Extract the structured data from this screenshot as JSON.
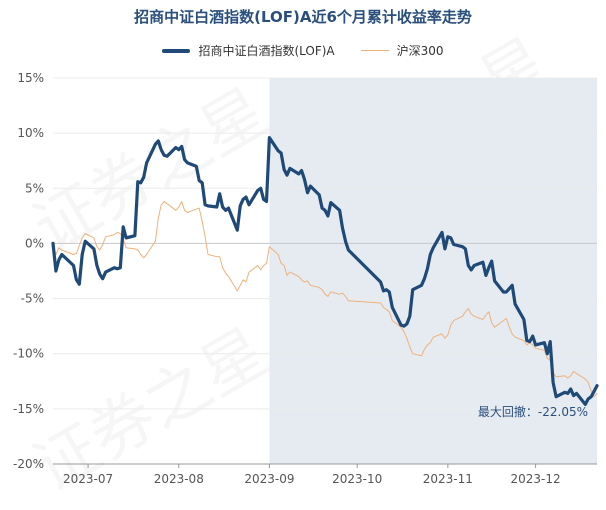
{
  "chart_data": {
    "type": "line",
    "title": "招商中证白酒指数(LOF)A近6个月累计收益率走势",
    "ylim": [
      -20,
      15
    ],
    "y_ticks": [
      "15%",
      "10%",
      "5%",
      "0%",
      "-5%",
      "-10%",
      "-15%",
      "-20%"
    ],
    "x_ticks": [
      "2023-07",
      "2023-08",
      "2023-09",
      "2023-10",
      "2023-11",
      "2023-12"
    ],
    "x_range": [
      "2023-06-19",
      "2023-12-22"
    ],
    "grid": true,
    "legend_position": "top",
    "shaded_region": {
      "start": "2023-09-01",
      "end": "2023-12-22"
    },
    "annotation": "最大回撤：-22.05%",
    "series": [
      {
        "name": "招商中证白酒指数(LOF)A",
        "color": "#1f4a78",
        "points": [
          [
            "2023-06-19",
            0.0
          ],
          [
            "2023-06-20",
            -2.5
          ],
          [
            "2023-06-21",
            -1.5
          ],
          [
            "2023-06-22",
            -1.0
          ],
          [
            "2023-06-26",
            -2.0
          ],
          [
            "2023-06-27",
            -3.3
          ],
          [
            "2023-06-28",
            -3.7
          ],
          [
            "2023-06-29",
            -1.0
          ],
          [
            "2023-06-30",
            0.2
          ],
          [
            "2023-07-03",
            -0.5
          ],
          [
            "2023-07-04",
            -2.0
          ],
          [
            "2023-07-05",
            -2.8
          ],
          [
            "2023-07-06",
            -3.2
          ],
          [
            "2023-07-07",
            -2.6
          ],
          [
            "2023-07-10",
            -2.2
          ],
          [
            "2023-07-11",
            -2.3
          ],
          [
            "2023-07-12",
            -2.2
          ],
          [
            "2023-07-13",
            1.5
          ],
          [
            "2023-07-14",
            0.5
          ],
          [
            "2023-07-17",
            0.7
          ],
          [
            "2023-07-18",
            5.6
          ],
          [
            "2023-07-19",
            5.5
          ],
          [
            "2023-07-20",
            6.0
          ],
          [
            "2023-07-21",
            7.3
          ],
          [
            "2023-07-24",
            9.0
          ],
          [
            "2023-07-25",
            9.3
          ],
          [
            "2023-07-26",
            8.5
          ],
          [
            "2023-07-27",
            8.0
          ],
          [
            "2023-07-28",
            7.9
          ],
          [
            "2023-07-31",
            8.7
          ],
          [
            "2023-08-01",
            8.5
          ],
          [
            "2023-08-02",
            8.8
          ],
          [
            "2023-08-03",
            7.6
          ],
          [
            "2023-08-04",
            7.3
          ],
          [
            "2023-08-07",
            7.0
          ],
          [
            "2023-08-08",
            5.7
          ],
          [
            "2023-08-09",
            5.5
          ],
          [
            "2023-08-10",
            3.5
          ],
          [
            "2023-08-11",
            3.4
          ],
          [
            "2023-08-14",
            3.3
          ],
          [
            "2023-08-15",
            4.5
          ],
          [
            "2023-08-16",
            3.3
          ],
          [
            "2023-08-17",
            3.0
          ],
          [
            "2023-08-18",
            3.2
          ],
          [
            "2023-08-21",
            1.2
          ],
          [
            "2023-08-22",
            3.4
          ],
          [
            "2023-08-23",
            4.0
          ],
          [
            "2023-08-24",
            4.2
          ],
          [
            "2023-08-25",
            3.5
          ],
          [
            "2023-08-28",
            4.8
          ],
          [
            "2023-08-29",
            5.0
          ],
          [
            "2023-08-30",
            4.0
          ],
          [
            "2023-08-31",
            3.8
          ],
          [
            "2023-09-01",
            9.6
          ],
          [
            "2023-09-04",
            8.4
          ],
          [
            "2023-09-05",
            8.2
          ],
          [
            "2023-09-06",
            6.7
          ],
          [
            "2023-09-07",
            6.2
          ],
          [
            "2023-09-08",
            6.8
          ],
          [
            "2023-09-11",
            6.3
          ],
          [
            "2023-09-12",
            6.6
          ],
          [
            "2023-09-13",
            5.8
          ],
          [
            "2023-09-14",
            4.6
          ],
          [
            "2023-09-15",
            5.2
          ],
          [
            "2023-09-18",
            4.4
          ],
          [
            "2023-09-19",
            3.2
          ],
          [
            "2023-09-20",
            3.0
          ],
          [
            "2023-09-21",
            2.5
          ],
          [
            "2023-09-22",
            3.7
          ],
          [
            "2023-09-25",
            3.0
          ],
          [
            "2023-09-26",
            1.4
          ],
          [
            "2023-09-27",
            0.2
          ],
          [
            "2023-09-28",
            -0.6
          ],
          [
            "2023-10-09",
            -3.5
          ],
          [
            "2023-10-10",
            -4.3
          ],
          [
            "2023-10-11",
            -4.2
          ],
          [
            "2023-10-12",
            -4.4
          ],
          [
            "2023-10-13",
            -5.8
          ],
          [
            "2023-10-16",
            -7.4
          ],
          [
            "2023-10-17",
            -7.5
          ],
          [
            "2023-10-18",
            -7.3
          ],
          [
            "2023-10-19",
            -6.6
          ],
          [
            "2023-10-20",
            -4.2
          ],
          [
            "2023-10-23",
            -3.8
          ],
          [
            "2023-10-24",
            -3.2
          ],
          [
            "2023-10-25",
            -2.3
          ],
          [
            "2023-10-26",
            -1.0
          ],
          [
            "2023-10-27",
            -0.4
          ],
          [
            "2023-10-30",
            1.0
          ],
          [
            "2023-10-31",
            -0.5
          ],
          [
            "2023-11-01",
            0.6
          ],
          [
            "2023-11-02",
            0.5
          ],
          [
            "2023-11-03",
            -0.1
          ],
          [
            "2023-11-06",
            -0.3
          ],
          [
            "2023-11-07",
            -0.5
          ],
          [
            "2023-11-08",
            -2.0
          ],
          [
            "2023-11-09",
            -2.4
          ],
          [
            "2023-11-10",
            -2.0
          ],
          [
            "2023-11-13",
            -1.7
          ],
          [
            "2023-11-14",
            -2.9
          ],
          [
            "2023-11-15",
            -2.2
          ],
          [
            "2023-11-16",
            -1.6
          ],
          [
            "2023-11-17",
            -3.4
          ],
          [
            "2023-11-20",
            -4.4
          ],
          [
            "2023-11-21",
            -4.4
          ],
          [
            "2023-11-22",
            -4.1
          ],
          [
            "2023-11-23",
            -3.8
          ],
          [
            "2023-11-24",
            -5.5
          ],
          [
            "2023-11-27",
            -6.9
          ],
          [
            "2023-11-28",
            -8.8
          ],
          [
            "2023-11-29",
            -8.9
          ],
          [
            "2023-11-30",
            -8.4
          ],
          [
            "2023-12-01",
            -9.2
          ],
          [
            "2023-12-04",
            -9.0
          ],
          [
            "2023-12-05",
            -10.0
          ],
          [
            "2023-12-06",
            -8.9
          ],
          [
            "2023-12-07",
            -12.6
          ],
          [
            "2023-12-08",
            -13.9
          ],
          [
            "2023-12-11",
            -13.5
          ],
          [
            "2023-12-12",
            -13.6
          ],
          [
            "2023-12-13",
            -13.2
          ],
          [
            "2023-12-14",
            -13.8
          ],
          [
            "2023-12-15",
            -13.6
          ],
          [
            "2023-12-18",
            -14.6
          ],
          [
            "2023-12-19",
            -14.1
          ],
          [
            "2023-12-20",
            -13.9
          ],
          [
            "2023-12-21",
            -13.4
          ],
          [
            "2023-12-22",
            -12.9
          ]
        ]
      },
      {
        "name": "沪深300",
        "color": "#f0b27a",
        "points": [
          [
            "2023-06-19",
            0.0
          ],
          [
            "2023-06-20",
            -1.0
          ],
          [
            "2023-06-21",
            -0.4
          ],
          [
            "2023-06-22",
            -0.6
          ],
          [
            "2023-06-26",
            -1.0
          ],
          [
            "2023-06-27",
            -0.9
          ],
          [
            "2023-06-28",
            -0.2
          ],
          [
            "2023-06-29",
            0.5
          ],
          [
            "2023-06-30",
            0.9
          ],
          [
            "2023-07-03",
            0.5
          ],
          [
            "2023-07-04",
            -0.3
          ],
          [
            "2023-07-05",
            -0.6
          ],
          [
            "2023-07-06",
            -0.1
          ],
          [
            "2023-07-07",
            0.6
          ],
          [
            "2023-07-10",
            0.8
          ],
          [
            "2023-07-11",
            1.0
          ],
          [
            "2023-07-12",
            0.9
          ],
          [
            "2023-07-13",
            0.4
          ],
          [
            "2023-07-14",
            -0.4
          ],
          [
            "2023-07-17",
            -0.5
          ],
          [
            "2023-07-18",
            -0.6
          ],
          [
            "2023-07-19",
            -1.0
          ],
          [
            "2023-07-20",
            -1.3
          ],
          [
            "2023-07-21",
            -1.0
          ],
          [
            "2023-07-24",
            0.2
          ],
          [
            "2023-07-25",
            2.3
          ],
          [
            "2023-07-26",
            3.5
          ],
          [
            "2023-07-27",
            3.8
          ],
          [
            "2023-07-28",
            3.6
          ],
          [
            "2023-07-31",
            3.0
          ],
          [
            "2023-08-01",
            3.3
          ],
          [
            "2023-08-02",
            3.8
          ],
          [
            "2023-08-03",
            3.0
          ],
          [
            "2023-08-04",
            2.8
          ],
          [
            "2023-08-07",
            3.1
          ],
          [
            "2023-08-08",
            3.2
          ],
          [
            "2023-08-09",
            2.0
          ],
          [
            "2023-08-10",
            0.6
          ],
          [
            "2023-08-11",
            -1.0
          ],
          [
            "2023-08-14",
            -1.2
          ],
          [
            "2023-08-15",
            -1.2
          ],
          [
            "2023-08-16",
            -2.2
          ],
          [
            "2023-08-17",
            -2.7
          ],
          [
            "2023-08-18",
            -3.0
          ],
          [
            "2023-08-21",
            -4.3
          ],
          [
            "2023-08-22",
            -3.8
          ],
          [
            "2023-08-23",
            -3.3
          ],
          [
            "2023-08-24",
            -3.5
          ],
          [
            "2023-08-25",
            -2.6
          ],
          [
            "2023-08-28",
            -2.0
          ],
          [
            "2023-08-29",
            -2.4
          ],
          [
            "2023-08-30",
            -2.0
          ],
          [
            "2023-08-31",
            -1.8
          ],
          [
            "2023-09-01",
            -0.3
          ],
          [
            "2023-09-04",
            -1.0
          ],
          [
            "2023-09-05",
            -1.8
          ],
          [
            "2023-09-06",
            -2.0
          ],
          [
            "2023-09-07",
            -2.9
          ],
          [
            "2023-09-08",
            -2.6
          ],
          [
            "2023-09-11",
            -3.0
          ],
          [
            "2023-09-12",
            -3.3
          ],
          [
            "2023-09-13",
            -3.5
          ],
          [
            "2023-09-14",
            -3.4
          ],
          [
            "2023-09-15",
            -3.8
          ],
          [
            "2023-09-18",
            -4.0
          ],
          [
            "2023-09-19",
            -4.2
          ],
          [
            "2023-09-20",
            -4.6
          ],
          [
            "2023-09-21",
            -4.8
          ],
          [
            "2023-09-22",
            -4.4
          ],
          [
            "2023-09-25",
            -4.6
          ],
          [
            "2023-09-26",
            -4.5
          ],
          [
            "2023-09-27",
            -4.8
          ],
          [
            "2023-09-28",
            -5.2
          ],
          [
            "2023-10-09",
            -5.4
          ],
          [
            "2023-10-10",
            -5.8
          ],
          [
            "2023-10-11",
            -6.0
          ],
          [
            "2023-10-12",
            -6.2
          ],
          [
            "2023-10-13",
            -7.0
          ],
          [
            "2023-10-16",
            -7.6
          ],
          [
            "2023-10-17",
            -8.0
          ],
          [
            "2023-10-18",
            -8.6
          ],
          [
            "2023-10-19",
            -9.4
          ],
          [
            "2023-10-20",
            -10.0
          ],
          [
            "2023-10-23",
            -10.2
          ],
          [
            "2023-10-24",
            -9.6
          ],
          [
            "2023-10-25",
            -9.2
          ],
          [
            "2023-10-26",
            -9.0
          ],
          [
            "2023-10-27",
            -8.5
          ],
          [
            "2023-10-30",
            -8.2
          ],
          [
            "2023-10-31",
            -8.6
          ],
          [
            "2023-11-01",
            -8.3
          ],
          [
            "2023-11-02",
            -7.4
          ],
          [
            "2023-11-03",
            -7.0
          ],
          [
            "2023-11-06",
            -6.6
          ],
          [
            "2023-11-07",
            -6.2
          ],
          [
            "2023-11-08",
            -5.9
          ],
          [
            "2023-11-09",
            -6.4
          ],
          [
            "2023-11-10",
            -6.6
          ],
          [
            "2023-11-13",
            -6.9
          ],
          [
            "2023-11-14",
            -6.5
          ],
          [
            "2023-11-15",
            -6.2
          ],
          [
            "2023-11-16",
            -7.2
          ],
          [
            "2023-11-17",
            -7.6
          ],
          [
            "2023-11-20",
            -7.0
          ],
          [
            "2023-11-21",
            -6.8
          ],
          [
            "2023-11-22",
            -7.6
          ],
          [
            "2023-11-23",
            -8.2
          ],
          [
            "2023-11-24",
            -8.5
          ],
          [
            "2023-11-27",
            -8.8
          ],
          [
            "2023-11-28",
            -9.2
          ],
          [
            "2023-11-29",
            -9.0
          ],
          [
            "2023-11-30",
            -9.2
          ],
          [
            "2023-12-01",
            -9.5
          ],
          [
            "2023-12-04",
            -9.7
          ],
          [
            "2023-12-05",
            -10.4
          ],
          [
            "2023-12-06",
            -10.6
          ],
          [
            "2023-12-07",
            -11.7
          ],
          [
            "2023-12-08",
            -12.1
          ],
          [
            "2023-12-11",
            -12.0
          ],
          [
            "2023-12-12",
            -12.2
          ],
          [
            "2023-12-13",
            -12.0
          ],
          [
            "2023-12-14",
            -11.6
          ],
          [
            "2023-12-15",
            -11.8
          ],
          [
            "2023-12-18",
            -12.3
          ],
          [
            "2023-12-19",
            -12.6
          ],
          [
            "2023-12-20",
            -13.4
          ],
          [
            "2023-12-21",
            -13.9
          ],
          [
            "2023-12-22",
            -13.6
          ]
        ]
      }
    ]
  },
  "watermark": "证券之星"
}
